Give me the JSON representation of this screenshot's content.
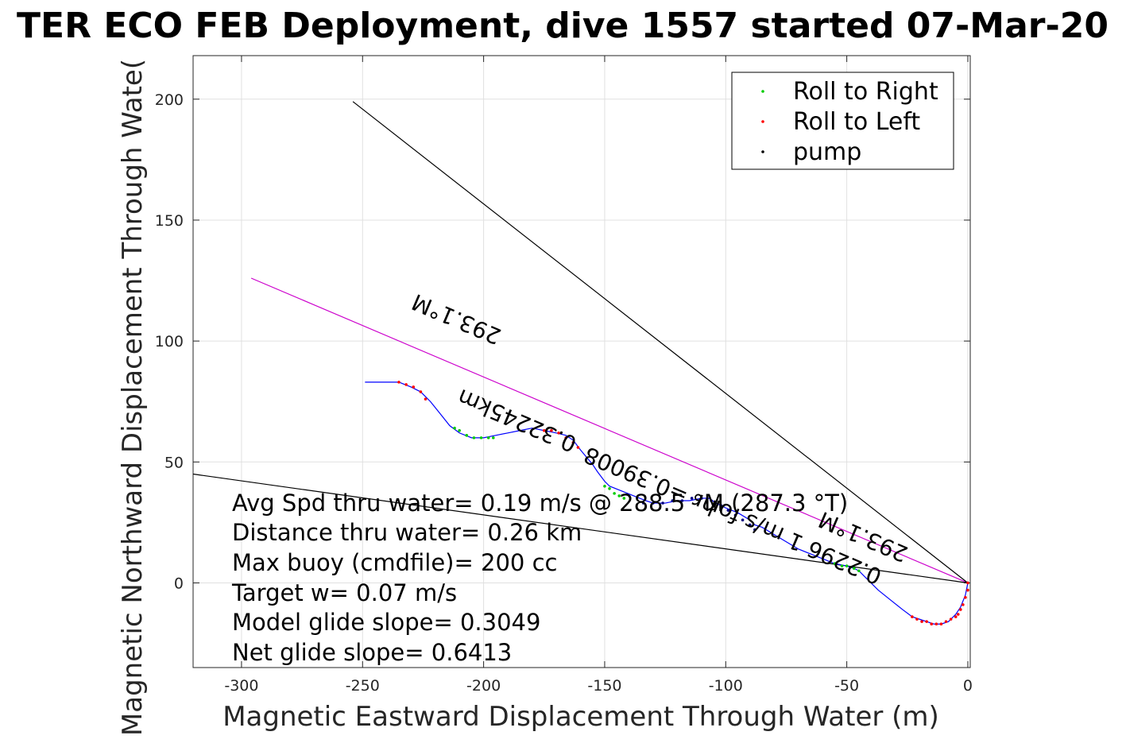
{
  "chart_data": {
    "type": "scatter",
    "title": "TER ECO FEB Deployment, dive 1557 started 07-Mar-20",
    "xlabel": "Magnetic Eastward Displacement Through Water (m)",
    "ylabel": "Magnetic Northward Displacement Through Wate(",
    "xlim": [
      -320,
      1
    ],
    "ylim": [
      -35,
      218
    ],
    "xticks": [
      -300,
      -250,
      -200,
      -150,
      -100,
      -50,
      0
    ],
    "yticks": [
      0,
      50,
      100,
      150,
      200
    ],
    "grid": true,
    "legend_position": "top-right",
    "legend": [
      {
        "label": "Roll to Right",
        "color": "#00cc00"
      },
      {
        "label": "Roll to Left",
        "color": "#ff0000"
      },
      {
        "label": "pump",
        "color": "#000000"
      }
    ],
    "track": {
      "name": "glider track",
      "color": "#0000ff",
      "x": [
        0,
        -1,
        -3,
        -5,
        -8,
        -11,
        -14,
        -17,
        -20,
        -23,
        -27,
        -32,
        -37,
        -42,
        -45,
        -47,
        -50,
        -55,
        -60,
        -65,
        -70,
        -75,
        -80,
        -85,
        -88,
        -90,
        -95,
        -100,
        -104,
        -107,
        -110,
        -115,
        -120,
        -125,
        -130,
        -133,
        -138,
        -143,
        -148,
        -150,
        -153,
        -155,
        -160,
        -163,
        -166,
        -170,
        -175,
        -180,
        -185,
        -190,
        -195,
        -200,
        -205,
        -210,
        -214,
        -218,
        -222,
        -226,
        -230,
        -235,
        -240,
        -245,
        -249
      ],
      "y": [
        0,
        -5,
        -10,
        -13,
        -16,
        -17,
        -17,
        -16,
        -15,
        -14,
        -11,
        -7,
        -3,
        2,
        5,
        6,
        7,
        8,
        10,
        12,
        14,
        17,
        20,
        23,
        24,
        26,
        29,
        31,
        33,
        35,
        35,
        34,
        34,
        33,
        33,
        34,
        36,
        38,
        40,
        42,
        46,
        49,
        55,
        59,
        61,
        62,
        63,
        64,
        63,
        62,
        61,
        60,
        60,
        62,
        65,
        70,
        75,
        79,
        81,
        83,
        83,
        83,
        83
      ]
    },
    "roll_right": {
      "x": [
        -45,
        -47,
        -50,
        -52,
        -55,
        -150,
        -148,
        -146,
        -144,
        -142,
        -212,
        -210,
        -207,
        -204,
        -201,
        -198,
        -196
      ],
      "y": [
        5,
        6,
        7,
        7,
        8,
        40,
        39,
        37,
        36,
        35,
        64,
        63,
        61,
        60,
        60,
        60,
        60
      ]
    },
    "roll_left": {
      "x": [
        0,
        0,
        -1,
        -2,
        -3,
        -4,
        -5,
        -7,
        -9,
        -11,
        -13,
        -15,
        -17,
        -19,
        -21,
        -23,
        -235,
        -232,
        -229,
        -226,
        -224,
        -175,
        -172,
        -169,
        -166,
        -163,
        -161
      ],
      "y": [
        0,
        -3,
        -6,
        -9,
        -11,
        -13,
        -14,
        -15,
        -16,
        -17,
        -17,
        -17,
        -16,
        -16,
        -15,
        -14,
        83,
        82,
        81,
        79,
        76,
        63,
        63,
        62,
        60,
        58,
        56
      ]
    },
    "pump": {
      "x": [
        -88,
        -90,
        -93,
        -96,
        -99,
        -102,
        -106,
        -110,
        -114,
        -118,
        -122,
        -126,
        -130,
        -134
      ],
      "y": [
        22,
        24,
        26,
        28,
        30,
        32,
        34,
        35,
        35,
        34,
        34,
        33,
        33,
        33
      ]
    },
    "lines": [
      {
        "name": "heading-line",
        "color": "#cc00cc",
        "x": [
          0,
          -296
        ],
        "y": [
          0,
          126
        ]
      },
      {
        "name": "upper-bound-line",
        "color": "#000000",
        "x": [
          0,
          -254
        ],
        "y": [
          0,
          199
        ]
      },
      {
        "name": "lower-bound-line",
        "color": "#000000",
        "x": [
          0,
          -320
        ],
        "y": [
          0,
          45
        ]
      }
    ],
    "rotated_labels": [
      {
        "text": "293.1°M",
        "x": -210,
        "y": 112,
        "angle": -23.1
      },
      {
        "text": "0.32245km",
        "x": -185,
        "y": 70,
        "angle": -23.1
      },
      {
        "text": "hr =0.39008",
        "x": -130,
        "y": 45,
        "angle": -23.1
      },
      {
        "text": "0.2296 1 m/s for",
        "x": -70,
        "y": 20,
        "angle": -23.1
      },
      {
        "text": "293.1°M",
        "x": -42,
        "y": 22,
        "angle": -23.1
      }
    ],
    "annotations": [
      "Avg Spd thru water=  0.19 m/s @ 288.5 °M (287.3 °T)",
      "Distance thru water=  0.26 km",
      "Max buoy (cmdfile)= 200 cc",
      "Target w= 0.07 m/s",
      "Model glide slope= 0.3049",
      "Net glide slope= 0.6413"
    ]
  }
}
